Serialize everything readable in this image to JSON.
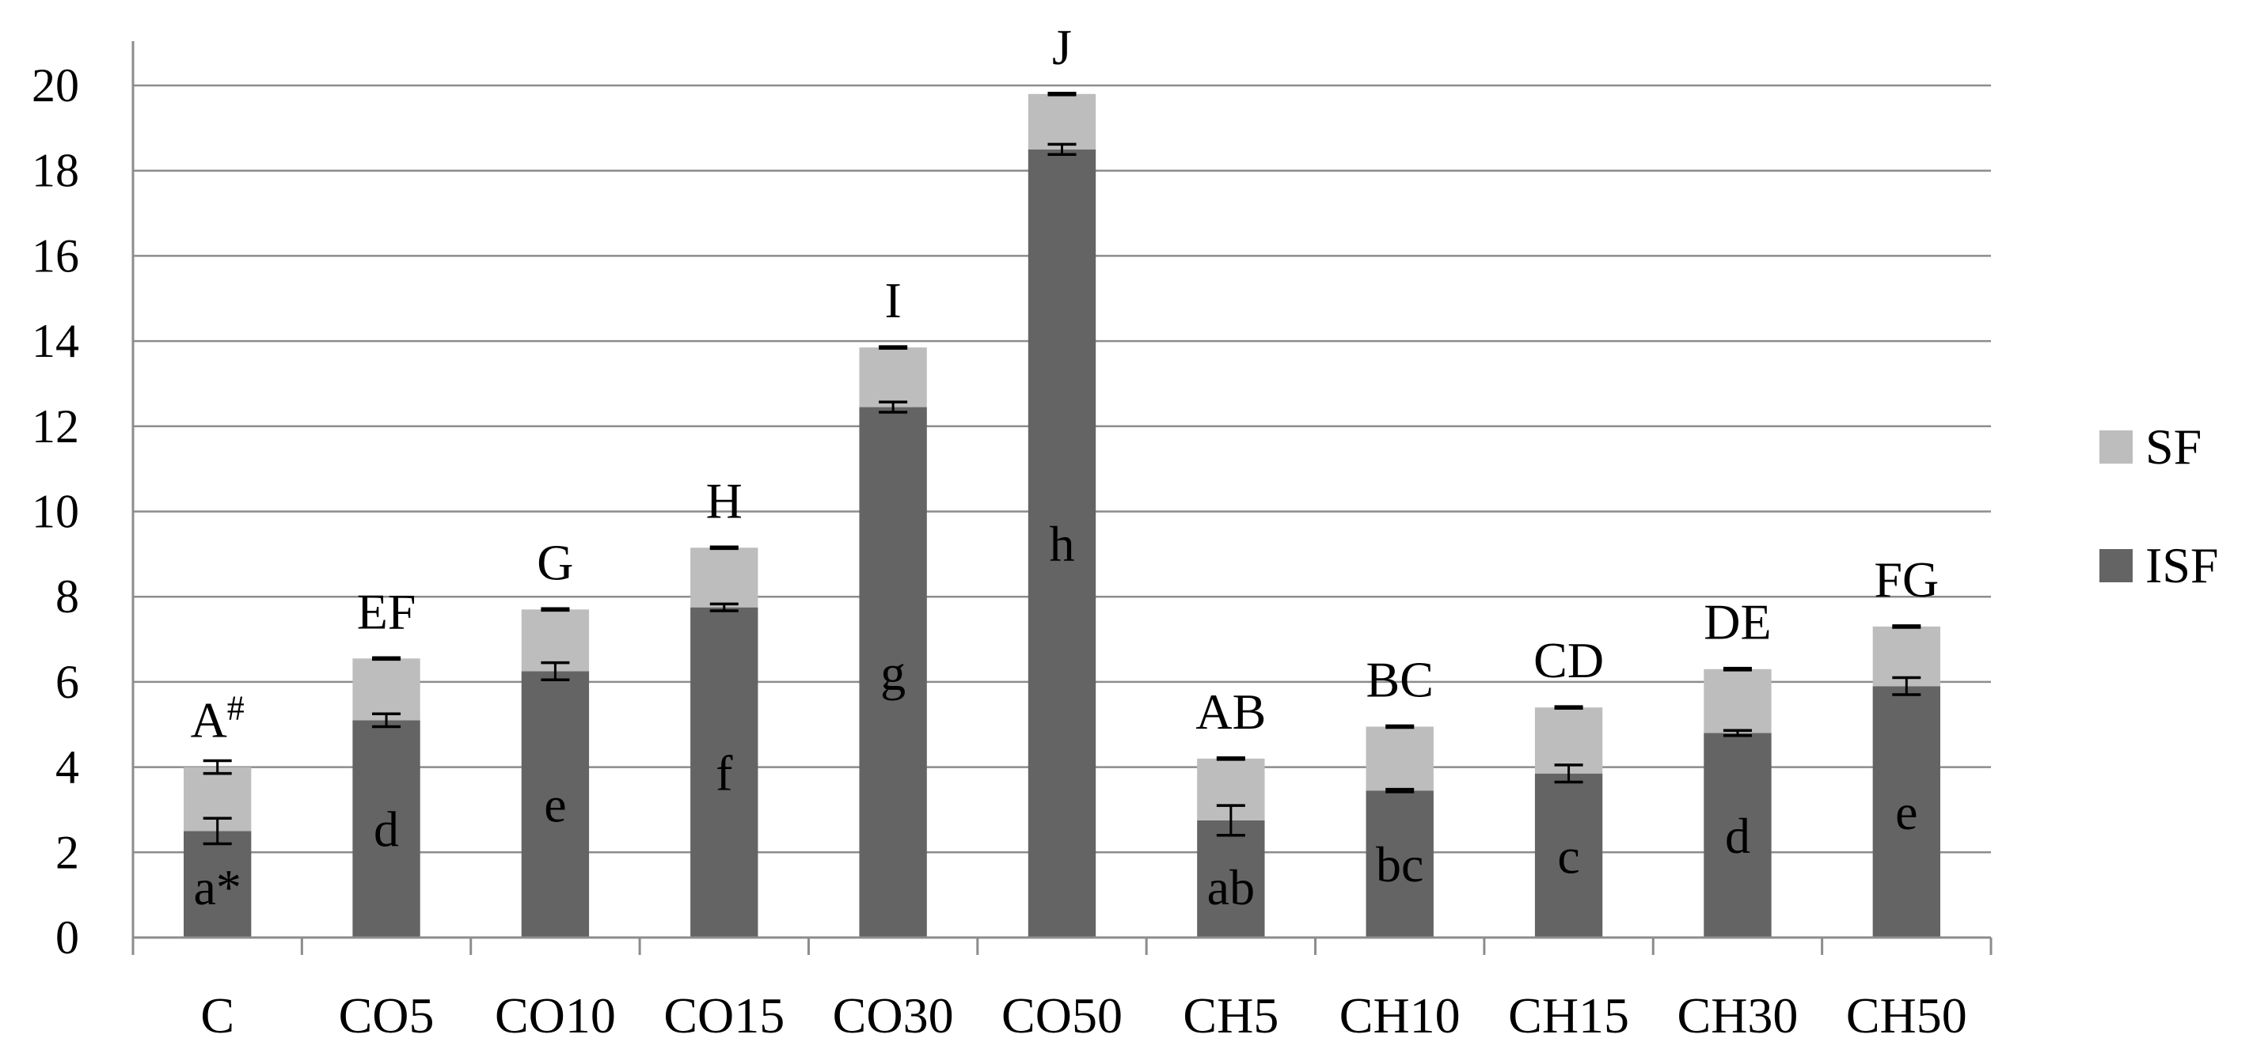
{
  "chart_data": {
    "type": "bar",
    "stacked": true,
    "categories": [
      "C",
      "CO5",
      "CO10",
      "CO15",
      "CO30",
      "CO50",
      "CH5",
      "CH10",
      "CH15",
      "CH30",
      "CH50"
    ],
    "series": [
      {
        "name": "ISF",
        "color": "#646464",
        "values": [
          2.5,
          5.1,
          6.25,
          7.75,
          12.45,
          18.5,
          2.75,
          3.45,
          3.85,
          4.8,
          5.9
        ],
        "errors": [
          0.3,
          0.15,
          0.2,
          0.08,
          0.12,
          0.12,
          0.35,
          0.03,
          0.2,
          0.06,
          0.2
        ],
        "labels": [
          "a*",
          "d",
          "e",
          "f",
          "g",
          "h",
          "ab",
          "bc",
          "c",
          "d",
          "e"
        ]
      },
      {
        "name": "SF",
        "color": "#bdbdbd",
        "values": [
          1.5,
          1.45,
          1.45,
          1.4,
          1.4,
          1.3,
          1.45,
          1.5,
          1.55,
          1.5,
          1.4
        ],
        "errors": [
          0.15,
          0.02,
          0.02,
          0.02,
          0.02,
          0.02,
          0.02,
          0.02,
          0.02,
          0.02,
          0.02
        ]
      }
    ],
    "total_labels": [
      "A#",
      "EF",
      "G",
      "H",
      "I",
      "J",
      "AB",
      "BC",
      "CD",
      "DE",
      "FG"
    ],
    "ylim": [
      0,
      20
    ],
    "yticks": [
      "0",
      "2",
      "4",
      "6",
      "8",
      "10",
      "12",
      "14",
      "16",
      "18",
      "20"
    ],
    "grid": true,
    "legend_position": "right",
    "title": "",
    "xlabel": "",
    "ylabel": ""
  }
}
